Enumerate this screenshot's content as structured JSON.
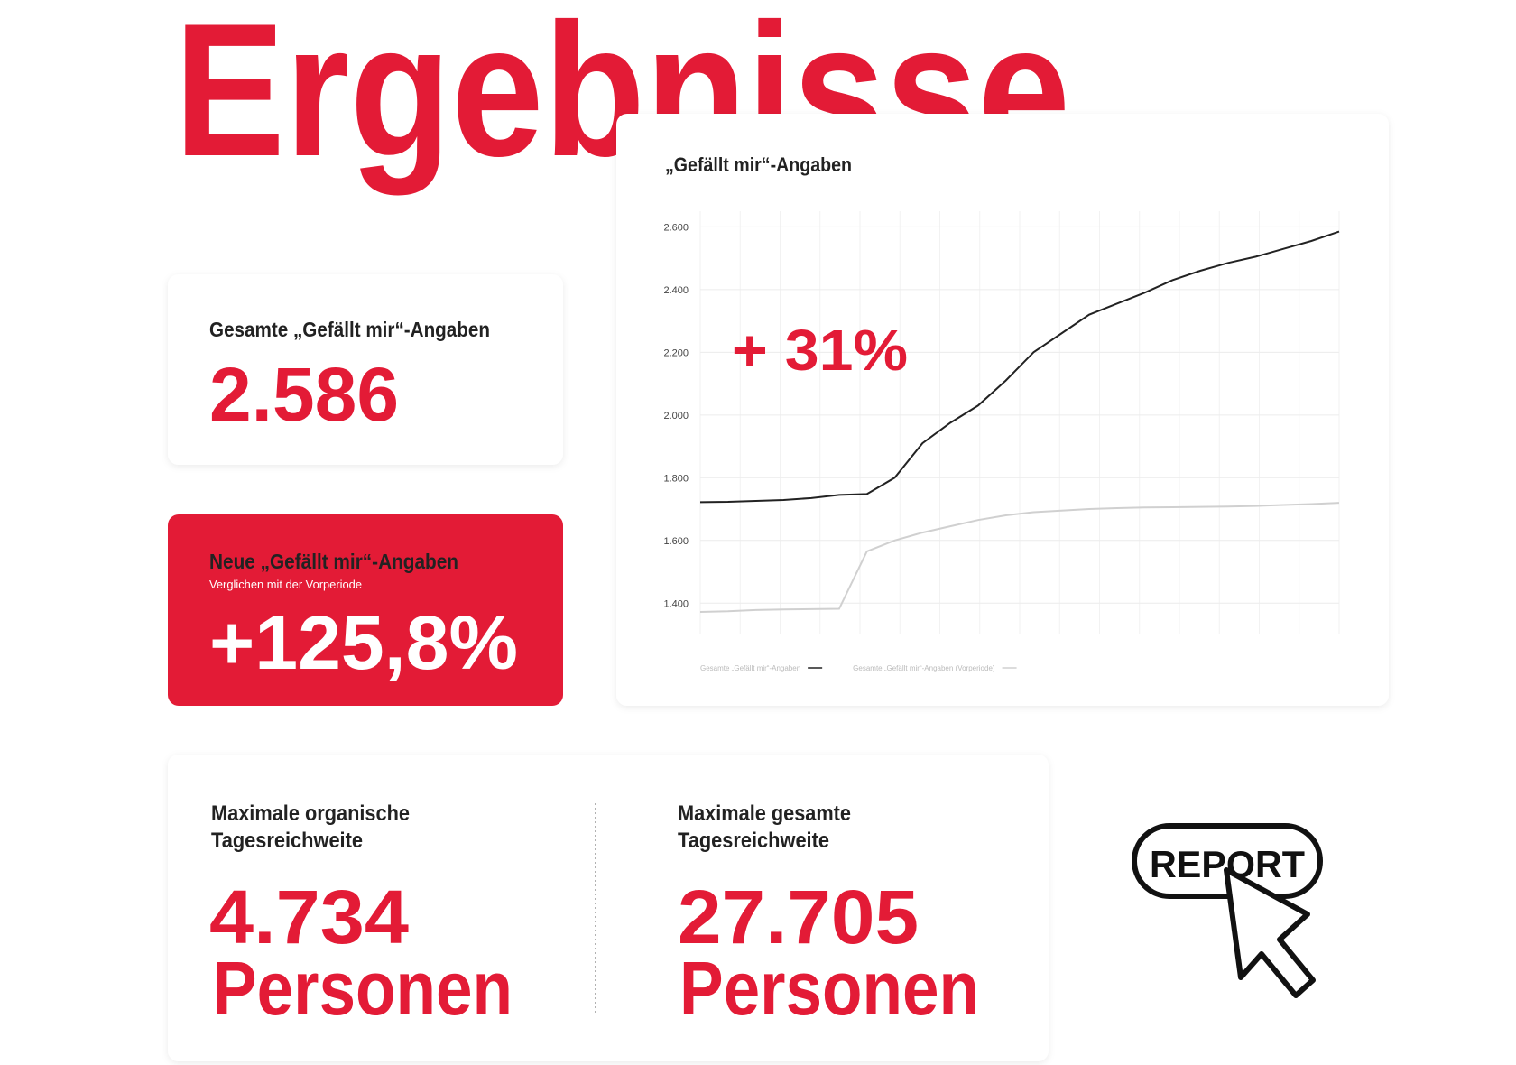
{
  "header": {
    "title": "Ergebnisse"
  },
  "cards": [
    {
      "label": "Gesamte „Gefällt mir“-Angaben",
      "value": "2.586"
    },
    {
      "label": "Neue „Gefällt mir“-Angaben",
      "subtitle": "Verglichen mit der Vorperiode",
      "value": "+125,8%"
    }
  ],
  "reach": [
    {
      "label": [
        "Maximale organische",
        "Tagesreichweite"
      ],
      "value": "4.734",
      "unit": "Personen"
    },
    {
      "label": [
        "Maximale gesamte",
        "Tagesreichweite"
      ],
      "value": "27.705",
      "unit": "Personen"
    }
  ],
  "button": {
    "label": "REPORT"
  },
  "chart_data": {
    "type": "line",
    "title": "„Gefällt mir“-Angaben",
    "annotation": "+ 31%",
    "categories": [
      null,
      null,
      null,
      null,
      null,
      null,
      null,
      null,
      null,
      null,
      null,
      null,
      null,
      null,
      null,
      null,
      null,
      null,
      null,
      null,
      null,
      null,
      null,
      null
    ],
    "series": [
      {
        "name": "Gesamte „Gefällt mir“-Angaben",
        "color": "#222222",
        "values": [
          1722,
          1723,
          1726,
          1729,
          1735,
          1745,
          1748,
          1800,
          1910,
          1975,
          2030,
          2110,
          2200,
          2260,
          2320,
          2355,
          2390,
          2430,
          2460,
          2485,
          2505,
          2530,
          2555,
          2585
        ]
      },
      {
        "name": "Gesamte „Gefällt mir“-Angaben (Vorperiode)",
        "color": "#d0d0d0",
        "values": [
          1372,
          1374,
          1378,
          1380,
          1381,
          1382,
          1565,
          1600,
          1625,
          1645,
          1665,
          1680,
          1690,
          1695,
          1700,
          1703,
          1705,
          1706,
          1707,
          1708,
          1710,
          1713,
          1716,
          1720
        ]
      }
    ],
    "ylim": [
      1300,
      2650
    ],
    "yticks": [
      {
        "value": 1400,
        "label": "1.400"
      },
      {
        "value": 1600,
        "label": "1.600"
      },
      {
        "value": 1800,
        "label": "1.800"
      },
      {
        "value": 2000,
        "label": "2.000"
      },
      {
        "value": 2200,
        "label": "2.200"
      },
      {
        "value": 2400,
        "label": "2.400"
      },
      {
        "value": 2600,
        "label": "2.600"
      }
    ],
    "grid": true,
    "legend": "bottom-left"
  }
}
